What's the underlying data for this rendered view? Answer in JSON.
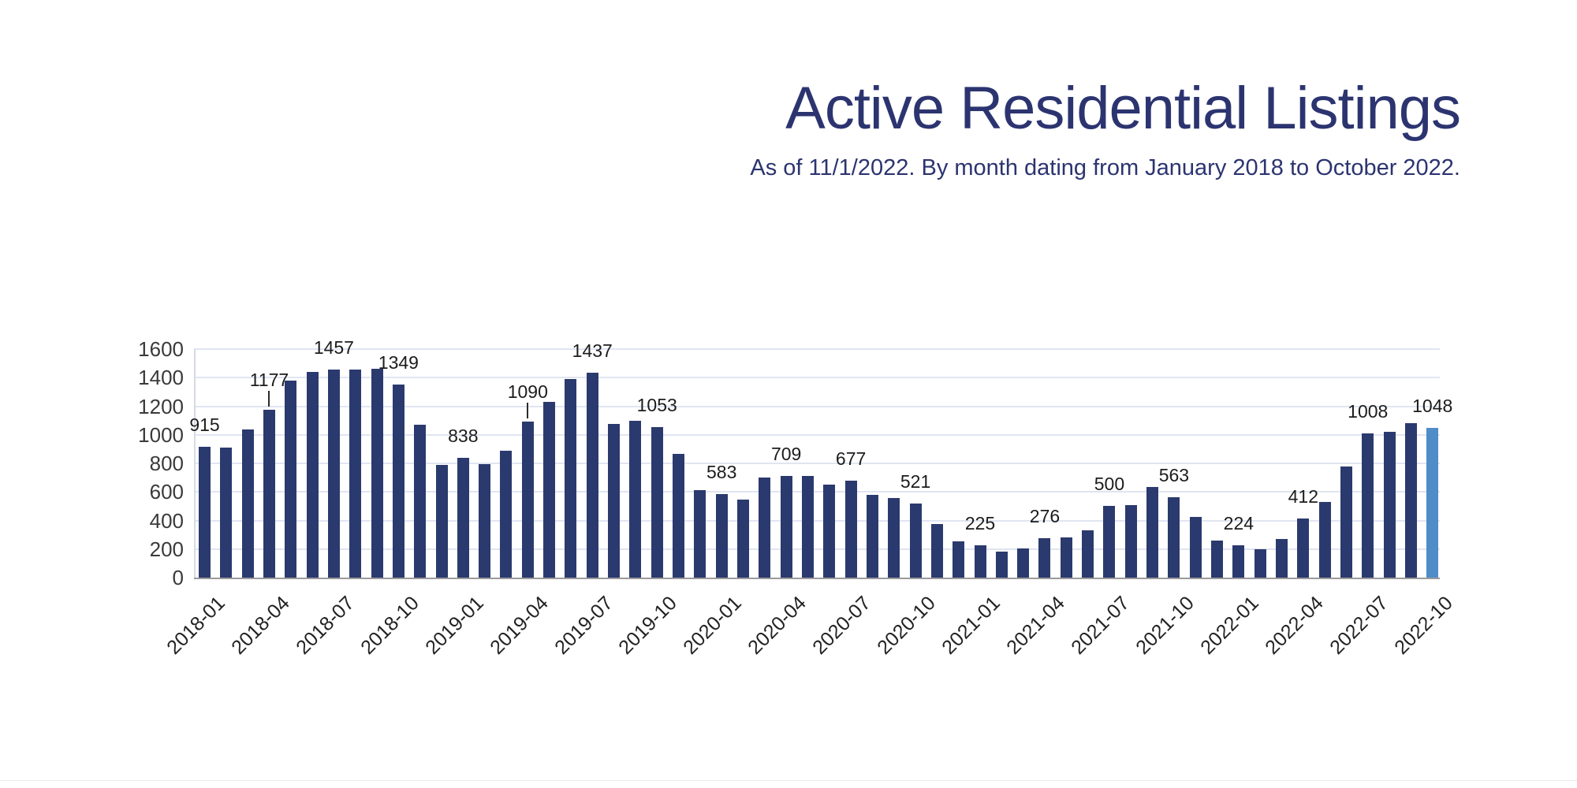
{
  "header": {
    "title": "Active Residential Listings",
    "subtitle": "As of 11/1/2022. By month dating from January 2018 to October 2022."
  },
  "chart_data": {
    "type": "bar",
    "title": "Active Residential Listings",
    "subtitle": "As of 11/1/2022. By month dating from January 2018 to October 2022.",
    "x": [
      "2018-01",
      "2018-02",
      "2018-03",
      "2018-04",
      "2018-05",
      "2018-06",
      "2018-07",
      "2018-08",
      "2018-09",
      "2018-10",
      "2018-11",
      "2018-12",
      "2019-01",
      "2019-02",
      "2019-03",
      "2019-04",
      "2019-05",
      "2019-06",
      "2019-07",
      "2019-08",
      "2019-09",
      "2019-10",
      "2019-11",
      "2019-12",
      "2020-01",
      "2020-02",
      "2020-03",
      "2020-04",
      "2020-05",
      "2020-06",
      "2020-07",
      "2020-08",
      "2020-09",
      "2020-10",
      "2020-11",
      "2020-12",
      "2021-01",
      "2021-02",
      "2021-03",
      "2021-04",
      "2021-05",
      "2021-06",
      "2021-07",
      "2021-08",
      "2021-09",
      "2021-10",
      "2021-11",
      "2021-12",
      "2022-01",
      "2022-02",
      "2022-03",
      "2022-04",
      "2022-05",
      "2022-06",
      "2022-07",
      "2022-08",
      "2022-09",
      "2022-10"
    ],
    "values": [
      915,
      913,
      1035,
      1177,
      1380,
      1442,
      1457,
      1458,
      1460,
      1349,
      1072,
      790,
      838,
      793,
      890,
      1090,
      1229,
      1391,
      1437,
      1077,
      1097,
      1053,
      868,
      615,
      583,
      545,
      700,
      709,
      711,
      650,
      677,
      580,
      560,
      521,
      375,
      255,
      225,
      180,
      205,
      276,
      280,
      330,
      500,
      505,
      633,
      563,
      425,
      260,
      224,
      200,
      273,
      412,
      530,
      780,
      1008,
      1022,
      1080,
      1048
    ],
    "labeled_months": [
      "2018-01",
      "2018-04",
      "2018-07",
      "2018-10",
      "2019-01",
      "2019-04",
      "2019-07",
      "2019-10",
      "2020-01",
      "2020-04",
      "2020-07",
      "2020-10",
      "2021-01",
      "2021-04",
      "2021-07",
      "2021-10",
      "2022-01",
      "2022-04",
      "2022-07",
      "2022-10"
    ],
    "labeled_values": [
      915,
      1177,
      1457,
      1349,
      838,
      1090,
      1437,
      1053,
      583,
      709,
      677,
      521,
      225,
      276,
      500,
      563,
      224,
      412,
      1008,
      1048
    ],
    "leader_line_months": [
      "2018-04",
      "2019-04"
    ],
    "highlight_month": "2022-10",
    "x_ticks": [
      "2018-01",
      "2018-04",
      "2018-07",
      "2018-10",
      "2019-01",
      "2019-04",
      "2019-07",
      "2019-10",
      "2020-01",
      "2020-04",
      "2020-07",
      "2020-10",
      "2021-01",
      "2021-04",
      "2021-07",
      "2021-10",
      "2022-01",
      "2022-04",
      "2022-07",
      "2022-10"
    ],
    "y_ticks": [
      0,
      200,
      400,
      600,
      800,
      1000,
      1200,
      1400,
      1600
    ],
    "ylim": [
      0,
      1600
    ],
    "grid": true,
    "legend": "none",
    "xlabel": "",
    "ylabel": "",
    "colors": {
      "bar": "#2b3a6e",
      "highlight_bar": "#508cc8",
      "title_text": "#2c3470",
      "gridline": "#e0e5f1",
      "axis_line": "#9b9b9b"
    }
  }
}
